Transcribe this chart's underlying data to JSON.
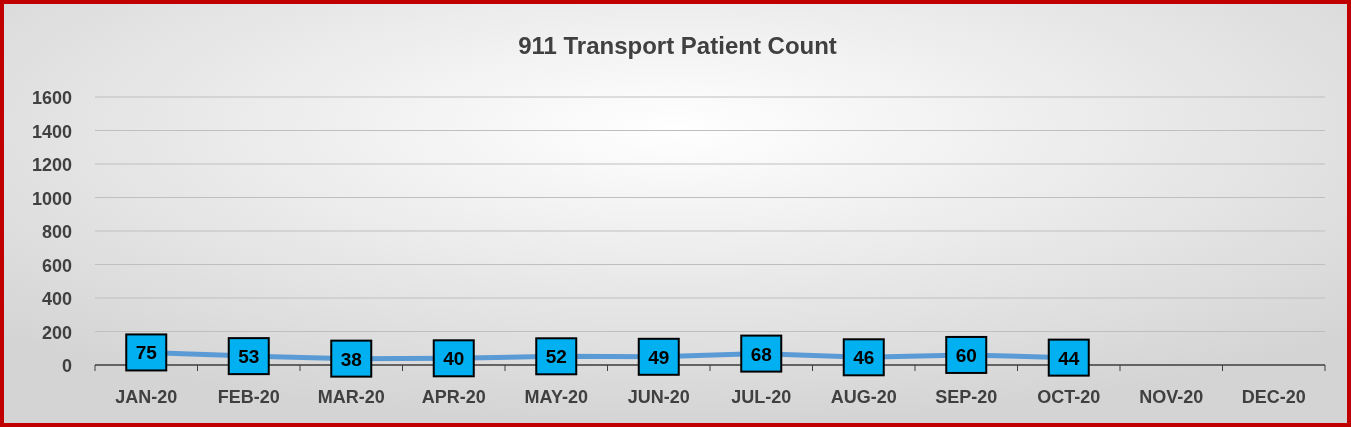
{
  "chart_data": {
    "type": "line",
    "title": "911 Transport Patient Count",
    "categories": [
      "JAN-20",
      "FEB-20",
      "MAR-20",
      "APR-20",
      "MAY-20",
      "JUN-20",
      "JUL-20",
      "AUG-20",
      "SEP-20",
      "OCT-20",
      "NOV-20",
      "DEC-20"
    ],
    "series": [
      {
        "color": "#5b9bd5",
        "values": [
          75,
          53,
          38,
          40,
          52,
          49,
          68,
          46,
          60,
          44,
          null,
          null
        ]
      }
    ],
    "ylim": [
      0,
      1600
    ],
    "yticks": [
      0,
      200,
      400,
      600,
      800,
      1000,
      1200,
      1400,
      1600
    ],
    "grid": "y",
    "data_labels": true,
    "marker": "square",
    "line_style": "solid"
  }
}
